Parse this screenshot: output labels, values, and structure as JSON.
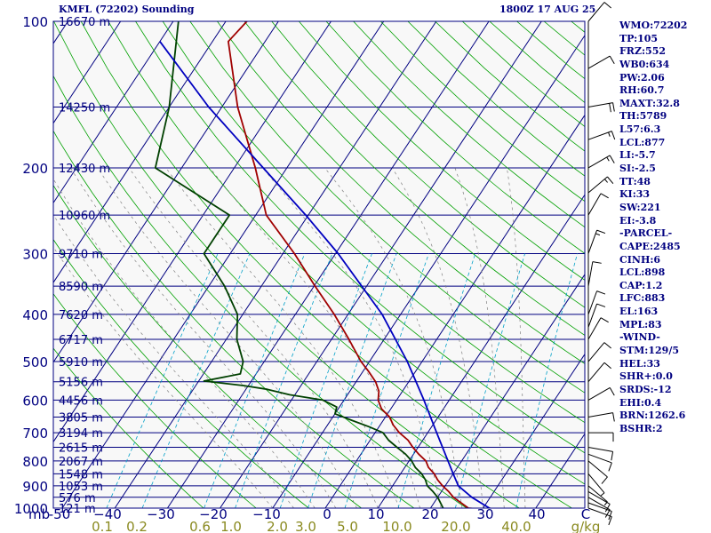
{
  "header": {
    "station": "KMFL (72202) Sounding",
    "valid_time": "1800Z 17 AUG 25"
  },
  "sidebar": [
    "WMO:72202",
    "TP:105",
    "FRZ:552",
    "WB0:634",
    "PW:2.06",
    "RH:60.7",
    "MAXT:32.8",
    "TH:5789",
    "L57:6.3",
    "LCL:877",
    "LI:-5.7",
    "SI:-2.5",
    "TT:48",
    "KI:33",
    "SW:221",
    "EI:-3.8",
    "-PARCEL-",
    "CAPE:2485",
    "CINH:6",
    "LCL:898",
    "CAP:1.2",
    "LFC:883",
    "EL:163",
    "MPL:83",
    "-WIND-",
    "STM:129/5",
    "HEL:33",
    "SHR+:0.0",
    "SRDS:-12",
    "EHI:0.4",
    "BRN:1262.6",
    "BSHR:2"
  ],
  "colors": {
    "background": "#ffffff",
    "plot_background": "#f8f8f8",
    "isobar": "#000080",
    "isotherm": "#000080",
    "dry_adiabat": "#00a000",
    "moist_adiabat": "#7f7f7f",
    "mixing_ratio": "#00a0c8",
    "temperature": "#a00000",
    "dewpoint": "#004000",
    "parcel": "#0000c0",
    "wind_barb": "#000000",
    "label_text": "#000080",
    "mixing_label": "#8a8a20"
  },
  "chart_data": {
    "type": "skew-t log-p",
    "pressure_unit": "mb",
    "temperature_unit": "C",
    "mixing_ratio_unit": "g/kg",
    "pressure_axis_ticks": [
      100,
      200,
      300,
      400,
      500,
      600,
      700,
      800,
      900,
      1000
    ],
    "pressure_range": [
      100,
      1000
    ],
    "temperature_axis_ticks": [
      -50,
      -40,
      -30,
      -20,
      -10,
      0,
      10,
      20,
      30,
      40
    ],
    "temperature_axis_labels": [
      "-50",
      "−40",
      "−30",
      "−20",
      "−10",
      "0",
      "10",
      "20",
      "30",
      "40",
      "C"
    ],
    "mixing_ratio_ticks": [
      0.1,
      0.2,
      0.6,
      1.0,
      2.0,
      3.0,
      5.0,
      10.0,
      20.0,
      40.0
    ],
    "mixing_ratio_labels": [
      "0.1",
      "0.2",
      "0.6",
      "1.0",
      "2.0",
      "3.0",
      "5.0",
      "10.0",
      "20.0",
      "40.0",
      "g/kg"
    ],
    "height_labels": [
      {
        "pressure": 100,
        "height": "16670 m"
      },
      {
        "pressure": 150,
        "height": "14250 m"
      },
      {
        "pressure": 200,
        "height": "12430 m"
      },
      {
        "pressure": 250,
        "height": "10960 m"
      },
      {
        "pressure": 300,
        "height": "9710 m"
      },
      {
        "pressure": 350,
        "height": "8590 m"
      },
      {
        "pressure": 400,
        "height": "7620 m"
      },
      {
        "pressure": 450,
        "height": "6717 m"
      },
      {
        "pressure": 500,
        "height": "5910 m"
      },
      {
        "pressure": 550,
        "height": "5156 m"
      },
      {
        "pressure": 600,
        "height": "4456 m"
      },
      {
        "pressure": 650,
        "height": "3805 m"
      },
      {
        "pressure": 700,
        "height": "3194 m"
      },
      {
        "pressure": 750,
        "height": "2615 m"
      },
      {
        "pressure": 800,
        "height": "2067 m"
      },
      {
        "pressure": 850,
        "height": "1548 m"
      },
      {
        "pressure": 900,
        "height": "1053 m"
      },
      {
        "pressure": 950,
        "height": "576 m"
      },
      {
        "pressure": 1000,
        "height": "121 m"
      }
    ],
    "series": [
      {
        "name": "temperature",
        "points": [
          {
            "p": 1011,
            "t": 32.8
          },
          {
            "p": 1000,
            "t": 27.2
          },
          {
            "p": 950,
            "t": 23.0
          },
          {
            "p": 925,
            "t": 21.4
          },
          {
            "p": 900,
            "t": 19.5
          },
          {
            "p": 875,
            "t": 17.8
          },
          {
            "p": 850,
            "t": 16.4
          },
          {
            "p": 825,
            "t": 14.5
          },
          {
            "p": 800,
            "t": 13.2
          },
          {
            "p": 775,
            "t": 11.0
          },
          {
            "p": 750,
            "t": 9.0
          },
          {
            "p": 725,
            "t": 7.2
          },
          {
            "p": 700,
            "t": 4.6
          },
          {
            "p": 675,
            "t": 2.5
          },
          {
            "p": 650,
            "t": 0.8
          },
          {
            "p": 625,
            "t": -1.8
          },
          {
            "p": 600,
            "t": -3.5
          },
          {
            "p": 575,
            "t": -4.5
          },
          {
            "p": 550,
            "t": -6.3
          },
          {
            "p": 525,
            "t": -8.8
          },
          {
            "p": 500,
            "t": -11.6
          },
          {
            "p": 450,
            "t": -16.7
          },
          {
            "p": 400,
            "t": -22.6
          },
          {
            "p": 350,
            "t": -29.8
          },
          {
            "p": 300,
            "t": -37.8
          },
          {
            "p": 250,
            "t": -48.0
          },
          {
            "p": 200,
            "t": -56.0
          },
          {
            "p": 150,
            "t": -67.0
          },
          {
            "p": 110,
            "t": -77.0
          },
          {
            "p": 100,
            "t": -76.0
          }
        ]
      },
      {
        "name": "dewpoint",
        "points": [
          {
            "p": 1011,
            "t": 23.8
          },
          {
            "p": 1000,
            "t": 22.4
          },
          {
            "p": 950,
            "t": 20.0
          },
          {
            "p": 925,
            "t": 18.4
          },
          {
            "p": 900,
            "t": 16.6
          },
          {
            "p": 875,
            "t": 15.5
          },
          {
            "p": 850,
            "t": 14.0
          },
          {
            "p": 825,
            "t": 12.0
          },
          {
            "p": 800,
            "t": 10.5
          },
          {
            "p": 775,
            "t": 8.5
          },
          {
            "p": 750,
            "t": 6.0
          },
          {
            "p": 725,
            "t": 3.5
          },
          {
            "p": 700,
            "t": 1.5
          },
          {
            "p": 680,
            "t": -2.0
          },
          {
            "p": 660,
            "t": -6.0
          },
          {
            "p": 640,
            "t": -10.0
          },
          {
            "p": 620,
            "t": -10.5
          },
          {
            "p": 600,
            "t": -14.0
          },
          {
            "p": 585,
            "t": -21.0
          },
          {
            "p": 570,
            "t": -26.0
          },
          {
            "p": 560,
            "t": -31.0
          },
          {
            "p": 548,
            "t": -39.0
          },
          {
            "p": 530,
            "t": -33.0
          },
          {
            "p": 500,
            "t": -34.0
          },
          {
            "p": 450,
            "t": -38.0
          },
          {
            "p": 400,
            "t": -41.0
          },
          {
            "p": 350,
            "t": -47.0
          },
          {
            "p": 300,
            "t": -55.0
          },
          {
            "p": 250,
            "t": -55.0
          },
          {
            "p": 200,
            "t": -75.0
          },
          {
            "p": 150,
            "t": -80.0
          },
          {
            "p": 100,
            "t": -89.0
          }
        ]
      },
      {
        "name": "parcel",
        "points": [
          {
            "p": 1011,
            "t": 32.8
          },
          {
            "p": 1000,
            "t": 31.2
          },
          {
            "p": 950,
            "t": 26.5
          },
          {
            "p": 900,
            "t": 22.5
          },
          {
            "p": 850,
            "t": 20.0
          },
          {
            "p": 800,
            "t": 17.4
          },
          {
            "p": 700,
            "t": 11.7
          },
          {
            "p": 600,
            "t": 5.2
          },
          {
            "p": 500,
            "t": -2.8
          },
          {
            "p": 400,
            "t": -13.5
          },
          {
            "p": 300,
            "t": -29.5
          },
          {
            "p": 250,
            "t": -40.5
          },
          {
            "p": 200,
            "t": -54.5
          },
          {
            "p": 150,
            "t": -72.5
          },
          {
            "p": 110,
            "t": -90.0
          }
        ]
      }
    ],
    "wind_barbs": [
      {
        "p": 1000,
        "dir": 110,
        "spd": 10
      },
      {
        "p": 975,
        "dir": 110,
        "spd": 10
      },
      {
        "p": 950,
        "dir": 120,
        "spd": 10
      },
      {
        "p": 925,
        "dir": 120,
        "spd": 10
      },
      {
        "p": 900,
        "dir": 130,
        "spd": 5
      },
      {
        "p": 850,
        "dir": 140,
        "spd": 5
      },
      {
        "p": 800,
        "dir": 130,
        "spd": 10
      },
      {
        "p": 775,
        "dir": 110,
        "spd": 10
      },
      {
        "p": 750,
        "dir": 100,
        "spd": 10
      },
      {
        "p": 700,
        "dir": 90,
        "spd": 10
      },
      {
        "p": 650,
        "dir": 80,
        "spd": 10
      },
      {
        "p": 600,
        "dir": 60,
        "spd": 10
      },
      {
        "p": 550,
        "dir": 40,
        "spd": 10
      },
      {
        "p": 500,
        "dir": 40,
        "spd": 10
      },
      {
        "p": 450,
        "dir": 30,
        "spd": 10
      },
      {
        "p": 425,
        "dir": 20,
        "spd": 10
      },
      {
        "p": 400,
        "dir": 20,
        "spd": 10
      },
      {
        "p": 350,
        "dir": 10,
        "spd": 10
      },
      {
        "p": 300,
        "dir": 20,
        "spd": 15
      },
      {
        "p": 250,
        "dir": 30,
        "spd": 10
      },
      {
        "p": 225,
        "dir": 50,
        "spd": 15
      },
      {
        "p": 200,
        "dir": 60,
        "spd": 15
      },
      {
        "p": 175,
        "dir": 70,
        "spd": 15
      },
      {
        "p": 150,
        "dir": 80,
        "spd": 20
      },
      {
        "p": 125,
        "dir": 60,
        "spd": 10
      },
      {
        "p": 100,
        "dir": 40,
        "spd": 10
      }
    ]
  }
}
